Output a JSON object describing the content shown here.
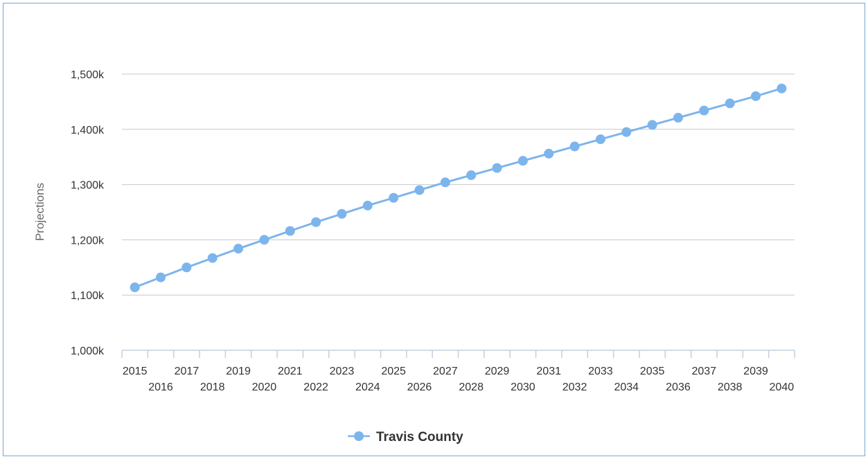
{
  "chart_data": {
    "type": "line",
    "title": "",
    "xlabel": "",
    "ylabel": "Projections",
    "x": [
      2015,
      2016,
      2017,
      2018,
      2019,
      2020,
      2021,
      2022,
      2023,
      2024,
      2025,
      2026,
      2027,
      2028,
      2029,
      2030,
      2031,
      2032,
      2033,
      2034,
      2035,
      2036,
      2037,
      2038,
      2039,
      2040
    ],
    "series": [
      {
        "name": "Travis County",
        "color": "#7cb5ec",
        "values": [
          1114000,
          1132000,
          1150000,
          1167000,
          1184000,
          1200000,
          1216000,
          1232000,
          1247000,
          1262000,
          1276000,
          1290000,
          1304000,
          1317000,
          1330000,
          1343000,
          1356000,
          1369000,
          1382000,
          1395000,
          1408000,
          1421000,
          1434000,
          1447000,
          1460000,
          1474000
        ]
      }
    ],
    "ylim": [
      1000000,
      1500000
    ],
    "yticks": [
      1000000,
      1100000,
      1200000,
      1300000,
      1400000,
      1500000
    ],
    "ytick_labels": [
      "1,000k",
      "1,100k",
      "1,200k",
      "1,300k",
      "1,400k",
      "1,500k"
    ],
    "xtick_labels": [
      "2015",
      "2016",
      "2017",
      "2018",
      "2019",
      "2020",
      "2021",
      "2022",
      "2023",
      "2024",
      "2025",
      "2026",
      "2027",
      "2028",
      "2029",
      "2030",
      "2031",
      "2032",
      "2033",
      "2034",
      "2035",
      "2036",
      "2037",
      "2038",
      "2039",
      "2040"
    ],
    "grid": true,
    "legend": "bottom-center"
  }
}
